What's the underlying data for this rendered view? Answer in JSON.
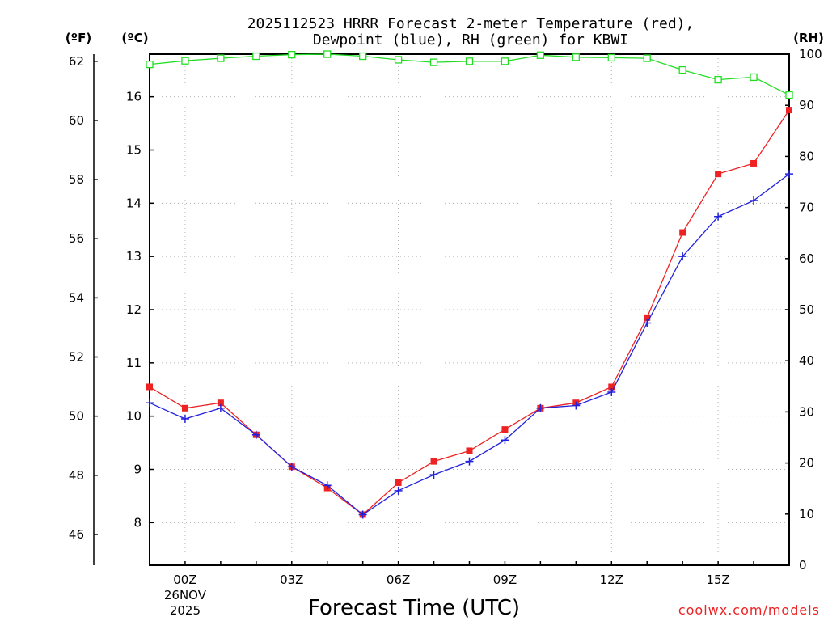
{
  "chart_data": {
    "type": "line",
    "title": "2025112523 HRRR Forecast 2-meter Temperature (red),",
    "title_line2": "Dewpoint (blue), RH (green) for KBWI",
    "xlabel": "Forecast Time (UTC)",
    "credit": "coolwx.com/models",
    "x_hours": [
      -1,
      0,
      1,
      2,
      3,
      4,
      5,
      6,
      7,
      8,
      9,
      10,
      11,
      12,
      13,
      14,
      15,
      16,
      17
    ],
    "x_ticks": [
      {
        "hour": 0,
        "label": "00Z",
        "sub1": "26NOV",
        "sub2": "2025"
      },
      {
        "hour": 3,
        "label": "03Z"
      },
      {
        "hour": 6,
        "label": "06Z"
      },
      {
        "hour": 9,
        "label": "09Z"
      },
      {
        "hour": 12,
        "label": "12Z"
      },
      {
        "hour": 15,
        "label": "15Z"
      }
    ],
    "xlim": [
      -1,
      17
    ],
    "left_c_axis": {
      "label": "(ºC)",
      "ylim": [
        7.2,
        16.8
      ],
      "ticks": [
        8,
        9,
        10,
        11,
        12,
        13,
        14,
        15,
        16
      ]
    },
    "left_f_axis": {
      "label": "(ºF)",
      "ticks": [
        46,
        48,
        50,
        52,
        54,
        56,
        58,
        60,
        62
      ]
    },
    "right_axis": {
      "label": "(RH)",
      "ylim": [
        0,
        100
      ],
      "ticks": [
        0,
        10,
        20,
        30,
        40,
        50,
        60,
        70,
        80,
        90,
        100
      ]
    },
    "series": [
      {
        "name": "Temperature",
        "unit": "C",
        "color": "#ee2222",
        "marker": "square-filled",
        "values": [
          10.55,
          10.15,
          10.25,
          9.65,
          9.05,
          8.65,
          8.15,
          8.75,
          9.15,
          9.35,
          9.75,
          10.15,
          10.25,
          10.55,
          11.85,
          13.45,
          14.55,
          14.75,
          15.75
        ]
      },
      {
        "name": "Dewpoint",
        "unit": "C",
        "color": "#2222dd",
        "marker": "plus",
        "values": [
          10.25,
          9.95,
          10.15,
          9.65,
          9.05,
          8.7,
          8.15,
          8.6,
          8.9,
          9.15,
          9.55,
          10.15,
          10.2,
          10.45,
          11.75,
          13.0,
          13.75,
          14.05,
          14.55
        ]
      },
      {
        "name": "RH",
        "unit": "%",
        "color": "#22dd22",
        "marker": "square-open",
        "values": [
          98,
          98.7,
          99.2,
          99.6,
          99.9,
          100,
          99.6,
          98.9,
          98.4,
          98.6,
          98.6,
          99.8,
          99.4,
          99.3,
          99.2,
          96.9,
          95,
          95.5,
          92
        ]
      }
    ]
  }
}
